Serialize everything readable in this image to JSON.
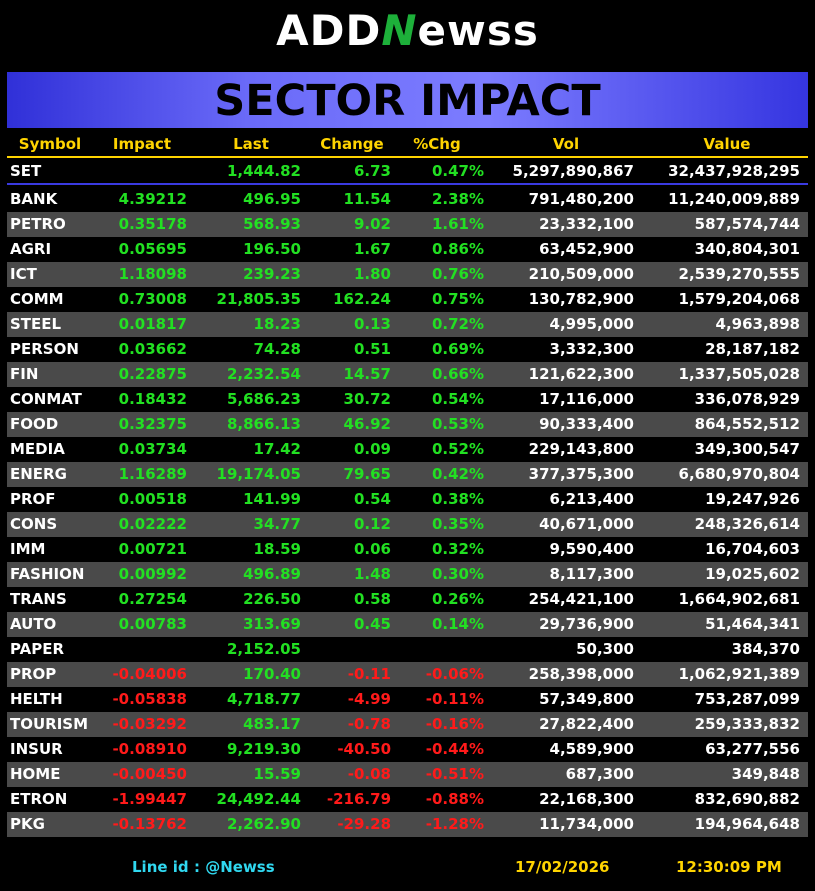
{
  "logo": {
    "left": "ADD",
    "mark": "N",
    "right": "ewss"
  },
  "title": "SECTOR IMPACT",
  "table": {
    "columns": [
      "Symbol",
      "Impact",
      "Last",
      "Change",
      "%Chg",
      "Vol",
      "Value"
    ],
    "index_row": [
      "SET",
      null,
      "1,444.82",
      "6.73",
      "0.47%",
      "5,297,890,867",
      "32,437,928,295"
    ],
    "rows": [
      [
        "BANK",
        "4.39212",
        "496.95",
        "11.54",
        "2.38%",
        "791,480,200",
        "11,240,009,889"
      ],
      [
        "PETRO",
        "0.35178",
        "568.93",
        "9.02",
        "1.61%",
        "23,332,100",
        "587,574,744"
      ],
      [
        "AGRI",
        "0.05695",
        "196.50",
        "1.67",
        "0.86%",
        "63,452,900",
        "340,804,301"
      ],
      [
        "ICT",
        "1.18098",
        "239.23",
        "1.80",
        "0.76%",
        "210,509,000",
        "2,539,270,555"
      ],
      [
        "COMM",
        "0.73008",
        "21,805.35",
        "162.24",
        "0.75%",
        "130,782,900",
        "1,579,204,068"
      ],
      [
        "STEEL",
        "0.01817",
        "18.23",
        "0.13",
        "0.72%",
        "4,995,000",
        "4,963,898"
      ],
      [
        "PERSON",
        "0.03662",
        "74.28",
        "0.51",
        "0.69%",
        "3,332,300",
        "28,187,182"
      ],
      [
        "FIN",
        "0.22875",
        "2,232.54",
        "14.57",
        "0.66%",
        "121,622,300",
        "1,337,505,028"
      ],
      [
        "CONMAT",
        "0.18432",
        "5,686.23",
        "30.72",
        "0.54%",
        "17,116,000",
        "336,078,929"
      ],
      [
        "FOOD",
        "0.32375",
        "8,866.13",
        "46.92",
        "0.53%",
        "90,333,400",
        "864,552,512"
      ],
      [
        "MEDIA",
        "0.03734",
        "17.42",
        "0.09",
        "0.52%",
        "229,143,800",
        "349,300,547"
      ],
      [
        "ENERG",
        "1.16289",
        "19,174.05",
        "79.65",
        "0.42%",
        "377,375,300",
        "6,680,970,804"
      ],
      [
        "PROF",
        "0.00518",
        "141.99",
        "0.54",
        "0.38%",
        "6,213,400",
        "19,247,926"
      ],
      [
        "CONS",
        "0.02222",
        "34.77",
        "0.12",
        "0.35%",
        "40,671,000",
        "248,326,614"
      ],
      [
        "IMM",
        "0.00721",
        "18.59",
        "0.06",
        "0.32%",
        "9,590,400",
        "16,704,603"
      ],
      [
        "FASHION",
        "0.00992",
        "496.89",
        "1.48",
        "0.30%",
        "8,117,300",
        "19,025,602"
      ],
      [
        "TRANS",
        "0.27254",
        "226.50",
        "0.58",
        "0.26%",
        "254,421,100",
        "1,664,902,681"
      ],
      [
        "AUTO",
        "0.00783",
        "313.69",
        "0.45",
        "0.14%",
        "29,736,900",
        "51,464,341"
      ],
      [
        "PAPER",
        null,
        "2,152.05",
        null,
        null,
        "50,300",
        "384,370"
      ],
      [
        "PROP",
        "-0.04006",
        "170.40",
        "-0.11",
        "-0.06%",
        "258,398,000",
        "1,062,921,389"
      ],
      [
        "HELTH",
        "-0.05838",
        "4,718.77",
        "-4.99",
        "-0.11%",
        "57,349,800",
        "753,287,099"
      ],
      [
        "TOURISM",
        "-0.03292",
        "483.17",
        "-0.78",
        "-0.16%",
        "27,822,400",
        "259,333,832"
      ],
      [
        "INSUR",
        "-0.08910",
        "9,219.30",
        "-40.50",
        "-0.44%",
        "4,589,900",
        "63,277,556"
      ],
      [
        "HOME",
        "-0.00450",
        "15.59",
        "-0.08",
        "-0.51%",
        "687,300",
        "349,848"
      ],
      [
        "ETRON",
        "-1.99447",
        "24,492.44",
        "-216.79",
        "-0.88%",
        "22,168,300",
        "832,690,882"
      ],
      [
        "PKG",
        "-0.13762",
        "2,262.90",
        "-29.28",
        "-1.28%",
        "11,734,000",
        "194,964,648"
      ]
    ]
  },
  "footer": {
    "line_label": "Line id",
    "line_id": ": @Newss",
    "date": "17/02/2026",
    "time": "12:30:09 PM"
  }
}
